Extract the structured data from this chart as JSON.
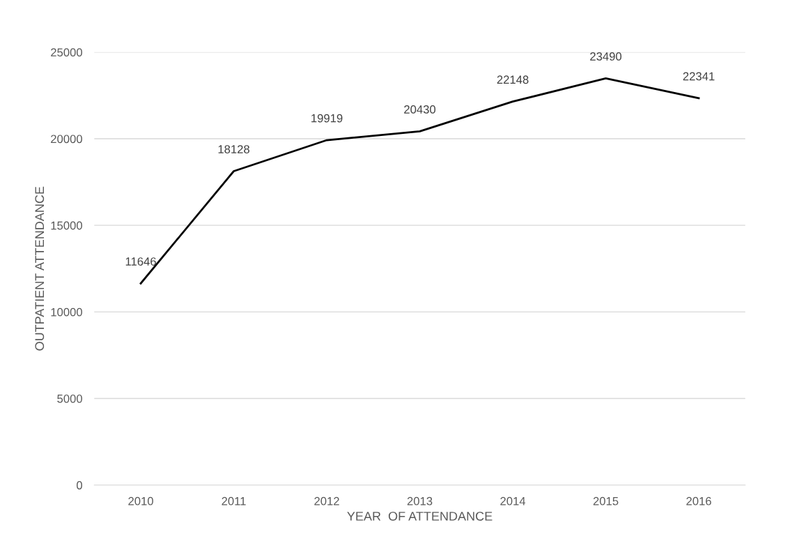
{
  "chart_data": {
    "type": "line",
    "xlabel": "YEAR  OF ATTENDANCE",
    "ylabel": "OUTPATIENT ATTENDANCE",
    "categories": [
      "2010",
      "2011",
      "2012",
      "2013",
      "2014",
      "2015",
      "2016"
    ],
    "series": [
      {
        "color": "#000000",
        "values": [
          11646,
          18128,
          19919,
          20430,
          22148,
          23490,
          22341
        ]
      }
    ],
    "ylim": [
      0,
      25000
    ],
    "yticks": [
      0,
      5000,
      10000,
      15000,
      20000,
      25000
    ],
    "grid": "y",
    "data_labels": true,
    "marker": "none",
    "line_style": "solid"
  }
}
